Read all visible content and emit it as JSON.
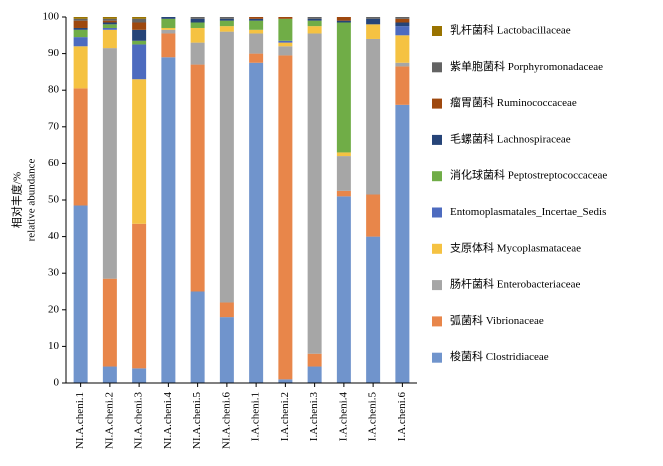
{
  "chart_data": {
    "type": "stacked_bar",
    "ylabel": [
      "相对丰度/%",
      "relative abundance"
    ],
    "categories": [
      "NI.A.cheni.1",
      "NI.A.cheni.2",
      "NI.A.cheni.3",
      "NI.A.cheni.4",
      "NI.A.cheni.5",
      "NI.A.cheni.6",
      "I.A.cheni.1",
      "I.A.cheni.2",
      "I.A.cheni.3",
      "I.A.cheni.4",
      "I.A.cheni.5",
      "I.A.cheni.6"
    ],
    "ylim": [
      0,
      100
    ],
    "yticks": [
      0,
      10,
      20,
      30,
      40,
      50,
      60,
      70,
      80,
      90,
      100
    ],
    "series": [
      {
        "name": "梭菌科 Clostridiaceae",
        "color": "#7094cc",
        "values": [
          48.5,
          4.5,
          4,
          89,
          25,
          18,
          87.5,
          1,
          4.5,
          51,
          40,
          76
        ]
      },
      {
        "name": "弧菌科 Vibrionaceae",
        "color": "#e8864a",
        "values": [
          32,
          24,
          39.5,
          6.5,
          62,
          4,
          2.5,
          88.5,
          3.5,
          1.5,
          11.5,
          10.5
        ]
      },
      {
        "name": "肠杆菌科 Enterobacteriaceae",
        "color": "#a6a6a6",
        "values": [
          0,
          63,
          0,
          1,
          6,
          74,
          5.5,
          2.5,
          87.5,
          9.5,
          42.5,
          1
        ]
      },
      {
        "name": "支原体科 Mycoplasmataceae",
        "color": "#f5c242",
        "values": [
          11.5,
          5,
          39.5,
          0.5,
          4,
          1.5,
          1,
          1,
          2,
          1,
          4,
          7.5
        ]
      },
      {
        "name": "Entomoplasmatales_Incertae_Sedis",
        "color": "#4d6bbf",
        "values": [
          2.5,
          0.5,
          9.5,
          0,
          0,
          0,
          0,
          0.5,
          0,
          0,
          0,
          2.5
        ]
      },
      {
        "name": "消化球菌科 Peptostreptococcaceae",
        "color": "#70ad47",
        "values": [
          2,
          1,
          1,
          2.5,
          1.5,
          1.5,
          2.5,
          6,
          1.5,
          35.5,
          0,
          0
        ]
      },
      {
        "name": "毛螺菌科 Lachnospiraceae",
        "color": "#264478",
        "values": [
          0.5,
          0.5,
          3,
          0.5,
          1,
          0.5,
          0.5,
          0,
          0.5,
          0.5,
          1.5,
          1
        ]
      },
      {
        "name": "瘤胃菌科 Ruminococcaceae",
        "color": "#9e480e",
        "values": [
          2,
          0.5,
          2,
          0,
          0,
          0,
          0.5,
          0.5,
          0,
          1,
          0,
          1
        ]
      },
      {
        "name": "紫单胞菌科 Porphyromonadaceae",
        "color": "#636363",
        "values": [
          0.5,
          0.5,
          1,
          0,
          0.5,
          0.5,
          0,
          0,
          0.5,
          0,
          0.5,
          0.5
        ]
      },
      {
        "name": "乳杆菌科 Lactobacillaceae",
        "color": "#997300",
        "values": [
          0.5,
          0.5,
          0.5,
          0,
          0,
          0,
          0,
          0,
          0,
          0,
          0,
          0
        ]
      }
    ]
  }
}
